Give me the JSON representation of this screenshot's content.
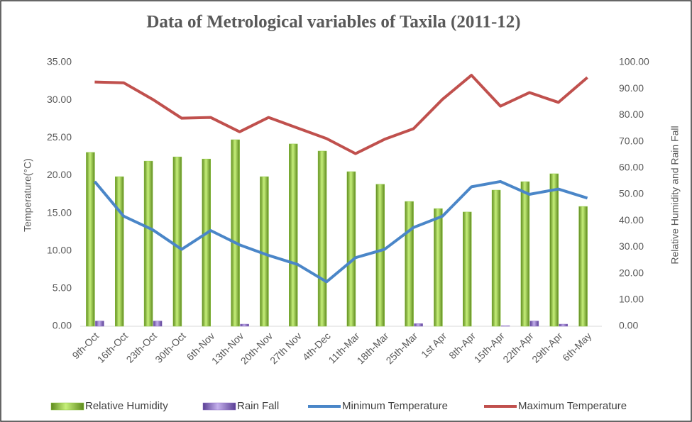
{
  "chart_data": {
    "type": "bar-line",
    "title": "Data of Metrological variables of Taxila (2011-12)",
    "y_label": "Temperature(°C)",
    "y2_label": "Relative Humidity and Rain Fall",
    "categories": [
      "9th-Oct",
      "16th-Oct",
      "23th-Oct",
      "30th-Oct",
      "6th-Nov",
      "13th-Nov",
      "20th-Nov",
      "27th Nov",
      "4th-Dec",
      "11th-Mar",
      "18th-Mar",
      "25th-Mar",
      "1st Apr",
      "8th-Apr",
      "15th-Apr",
      "22th-Apr",
      "29th-Apr",
      "6th-May"
    ],
    "series": [
      {
        "name": "Relative Humidity",
        "type": "bar",
        "axis": "y2",
        "color": "#8cc63f",
        "values": [
          65.9,
          56.7,
          62.6,
          64.2,
          63.4,
          70.7,
          56.7,
          69.1,
          66.4,
          58.6,
          53.8,
          47.3,
          44.6,
          43.3,
          51.6,
          54.8,
          57.8,
          45.4
        ]
      },
      {
        "name": "Rain Fall",
        "type": "bar",
        "axis": "y2",
        "color": "#8e6fc6",
        "values": [
          2,
          0,
          2,
          0,
          0,
          0.8,
          0,
          0,
          0,
          0,
          0,
          1,
          0,
          0,
          0.2,
          2,
          0.8,
          0
        ]
      },
      {
        "name": "Minimum Temperature",
        "type": "line",
        "color": "#4a86c8",
        "values": [
          19.2,
          14.6,
          12.8,
          10.2,
          12.7,
          10.8,
          9.4,
          8.2,
          5.9,
          9.1,
          10.2,
          13.1,
          14.6,
          18.5,
          19.2,
          17.5,
          18.2,
          17.0
        ]
      },
      {
        "name": "Maximum Temperature",
        "type": "line",
        "color": "#c0504d",
        "values": [
          32.4,
          32.3,
          30.1,
          27.6,
          27.7,
          25.8,
          27.7,
          26.3,
          24.9,
          22.9,
          24.8,
          26.2,
          30.1,
          33.3,
          29.2,
          31.0,
          29.7,
          33.0
        ]
      }
    ],
    "ylim": [
      0,
      35
    ],
    "yticks": [
      {
        "value": 0,
        "label": "0.00"
      },
      {
        "value": 5,
        "label": "5.00"
      },
      {
        "value": 10,
        "label": "10.00"
      },
      {
        "value": 15,
        "label": "15.00"
      },
      {
        "value": 20,
        "label": "20.00"
      },
      {
        "value": 25,
        "label": "25.00"
      },
      {
        "value": 30,
        "label": "30.00"
      },
      {
        "value": 35,
        "label": "35.00"
      }
    ],
    "y2lim": [
      0,
      100
    ],
    "y2ticks": [
      {
        "value": 0,
        "label": "0.00"
      },
      {
        "value": 10,
        "label": "10.00"
      },
      {
        "value": 20,
        "label": "20.00"
      },
      {
        "value": 30,
        "label": "30.00"
      },
      {
        "value": 40,
        "label": "40.00"
      },
      {
        "value": 50,
        "label": "50.00"
      },
      {
        "value": 60,
        "label": "60.00"
      },
      {
        "value": 70,
        "label": "70.00"
      },
      {
        "value": 80,
        "label": "80.00"
      },
      {
        "value": 90,
        "label": "90.00"
      },
      {
        "value": 100,
        "label": "100.00"
      }
    ],
    "legend": "bottom"
  }
}
